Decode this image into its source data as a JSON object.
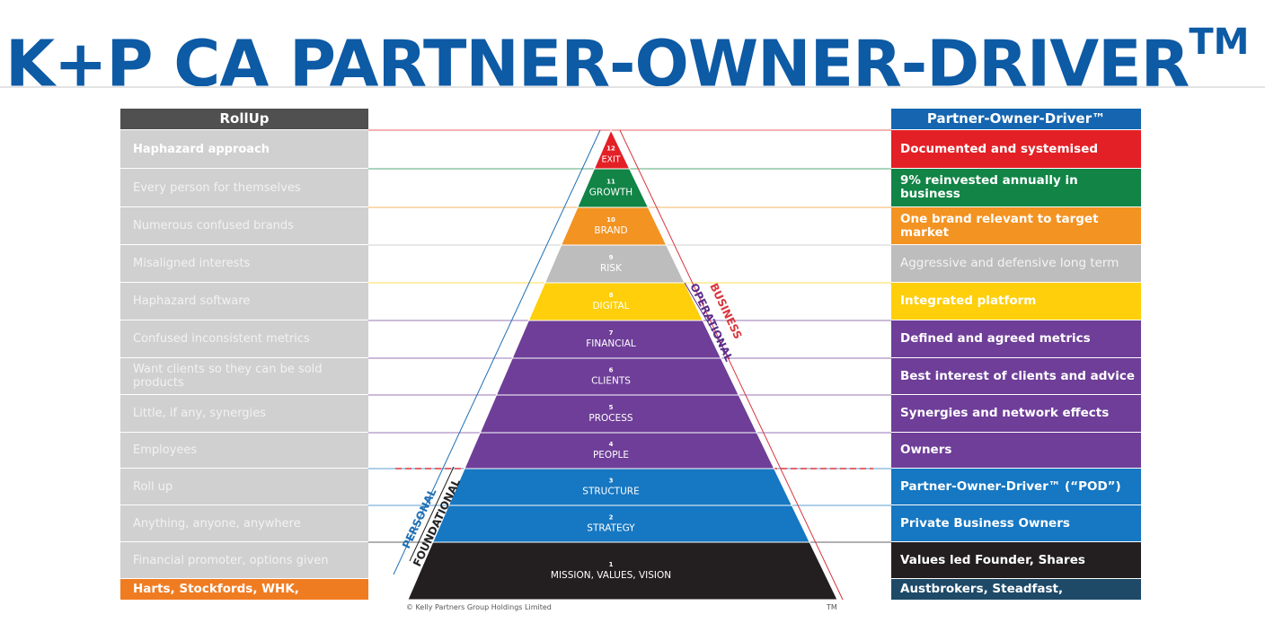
{
  "title": {
    "main": "K+P CA PARTNER-OWNER-DRIVER",
    "mark": "TM"
  },
  "left_header": "RollUp",
  "right_header": "Partner-Owner-Driver™",
  "colors": {
    "brand_blue": "#0d5aa5",
    "left_header_bg": "#505050",
    "right_header_bg": "#1565b0",
    "left_footer_bg": "#f07c22",
    "right_footer_bg": "#1e4a68"
  },
  "levels": [
    {
      "num": "12",
      "name": "EXIT",
      "color": "#e32026",
      "left": "Haphazard approach",
      "right": "Documented and systemised"
    },
    {
      "num": "11",
      "name": "GROWTH",
      "color": "#118446",
      "left": "Every person for themselves",
      "right": "9% reinvested annually in business"
    },
    {
      "num": "10",
      "name": "BRAND",
      "color": "#f39322",
      "left": "Numerous confused brands",
      "right": "One brand relevant to target market"
    },
    {
      "num": "9",
      "name": "RISK",
      "color": "#bdbdbd",
      "left": "Misaligned interests",
      "right": "Aggressive and defensive long term"
    },
    {
      "num": "8",
      "name": "DIGITAL",
      "color": "#fecf0a",
      "left": "Haphazard software",
      "right": "Integrated platform"
    },
    {
      "num": "7",
      "name": "FINANCIAL",
      "color": "#6e3e98",
      "left": "Confused inconsistent metrics",
      "right": "Defined and agreed metrics"
    },
    {
      "num": "6",
      "name": "CLIENTS",
      "color": "#6e3e98",
      "left": "Want clients so they can be sold products",
      "right": "Best interest of clients and advice"
    },
    {
      "num": "5",
      "name": "PROCESS",
      "color": "#6e3e98",
      "left": "Little, if any, synergies",
      "right": "Synergies and network effects"
    },
    {
      "num": "4",
      "name": "PEOPLE",
      "color": "#6e3e98",
      "left": "Employees",
      "right": "Owners"
    },
    {
      "num": "3",
      "name": "STRUCTURE",
      "color": "#1677c2",
      "left": "Roll up",
      "right": "Partner-Owner-Driver™ (“POD”)"
    },
    {
      "num": "2",
      "name": "STRATEGY",
      "color": "#1677c2",
      "left": "Anything, anyone, anywhere",
      "right": "Private Business Owners"
    },
    {
      "num": "1",
      "name": "MISSION, VALUES, VISION",
      "color": "#231f20",
      "left": "Financial promoter, options given",
      "right": "Values led Founder, Shares"
    }
  ],
  "left_footer": "Harts, Stockfords, WHK, Countplus",
  "right_footer": "Austbrokers, Steadfast, McDonalds",
  "side_labels": {
    "business": "BUSINESS",
    "operational": "OPERATIONAL",
    "personal": "PERSONAL",
    "foundational": "FOUNDATIONAL",
    "business_color": "#d9363e",
    "operational_color": "#5b2f8c",
    "personal_color": "#1f6fb5",
    "foundational_color": "#222222"
  },
  "copyright": "© Kelly Partners Group Holdings Limited",
  "tm": "TM"
}
